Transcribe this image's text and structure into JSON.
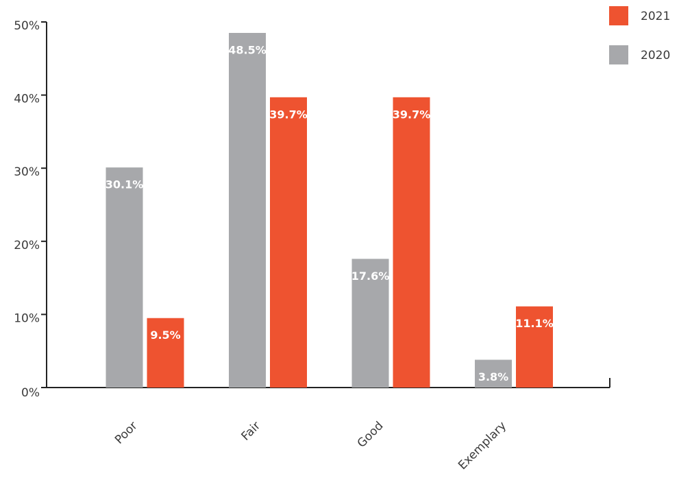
{
  "chart_data": {
    "type": "bar",
    "categories": [
      "Poor",
      "Fair",
      "Good",
      "Exemplary"
    ],
    "series": [
      {
        "name": "2020",
        "color": "#a7a8ab",
        "values": [
          30.1,
          48.5,
          17.6,
          3.8
        ],
        "value_labels": [
          "30.1%",
          "48.5%",
          "17.6%",
          "3.8%"
        ]
      },
      {
        "name": "2021",
        "color": "#ee5330",
        "values": [
          9.5,
          39.7,
          39.7,
          11.1
        ],
        "value_labels": [
          "9.5%",
          "39.7%",
          "39.7%",
          "11.1%"
        ]
      }
    ],
    "ylim": [
      0,
      50
    ],
    "yticks": [
      {
        "value": 0,
        "label": "0%"
      },
      {
        "value": 10,
        "label": "10%"
      },
      {
        "value": 20,
        "label": "20%"
      },
      {
        "value": 30,
        "label": "30%"
      },
      {
        "value": 40,
        "label": "40%"
      },
      {
        "value": 50,
        "label": "50%"
      }
    ],
    "legend": "top-right",
    "grid": false
  }
}
